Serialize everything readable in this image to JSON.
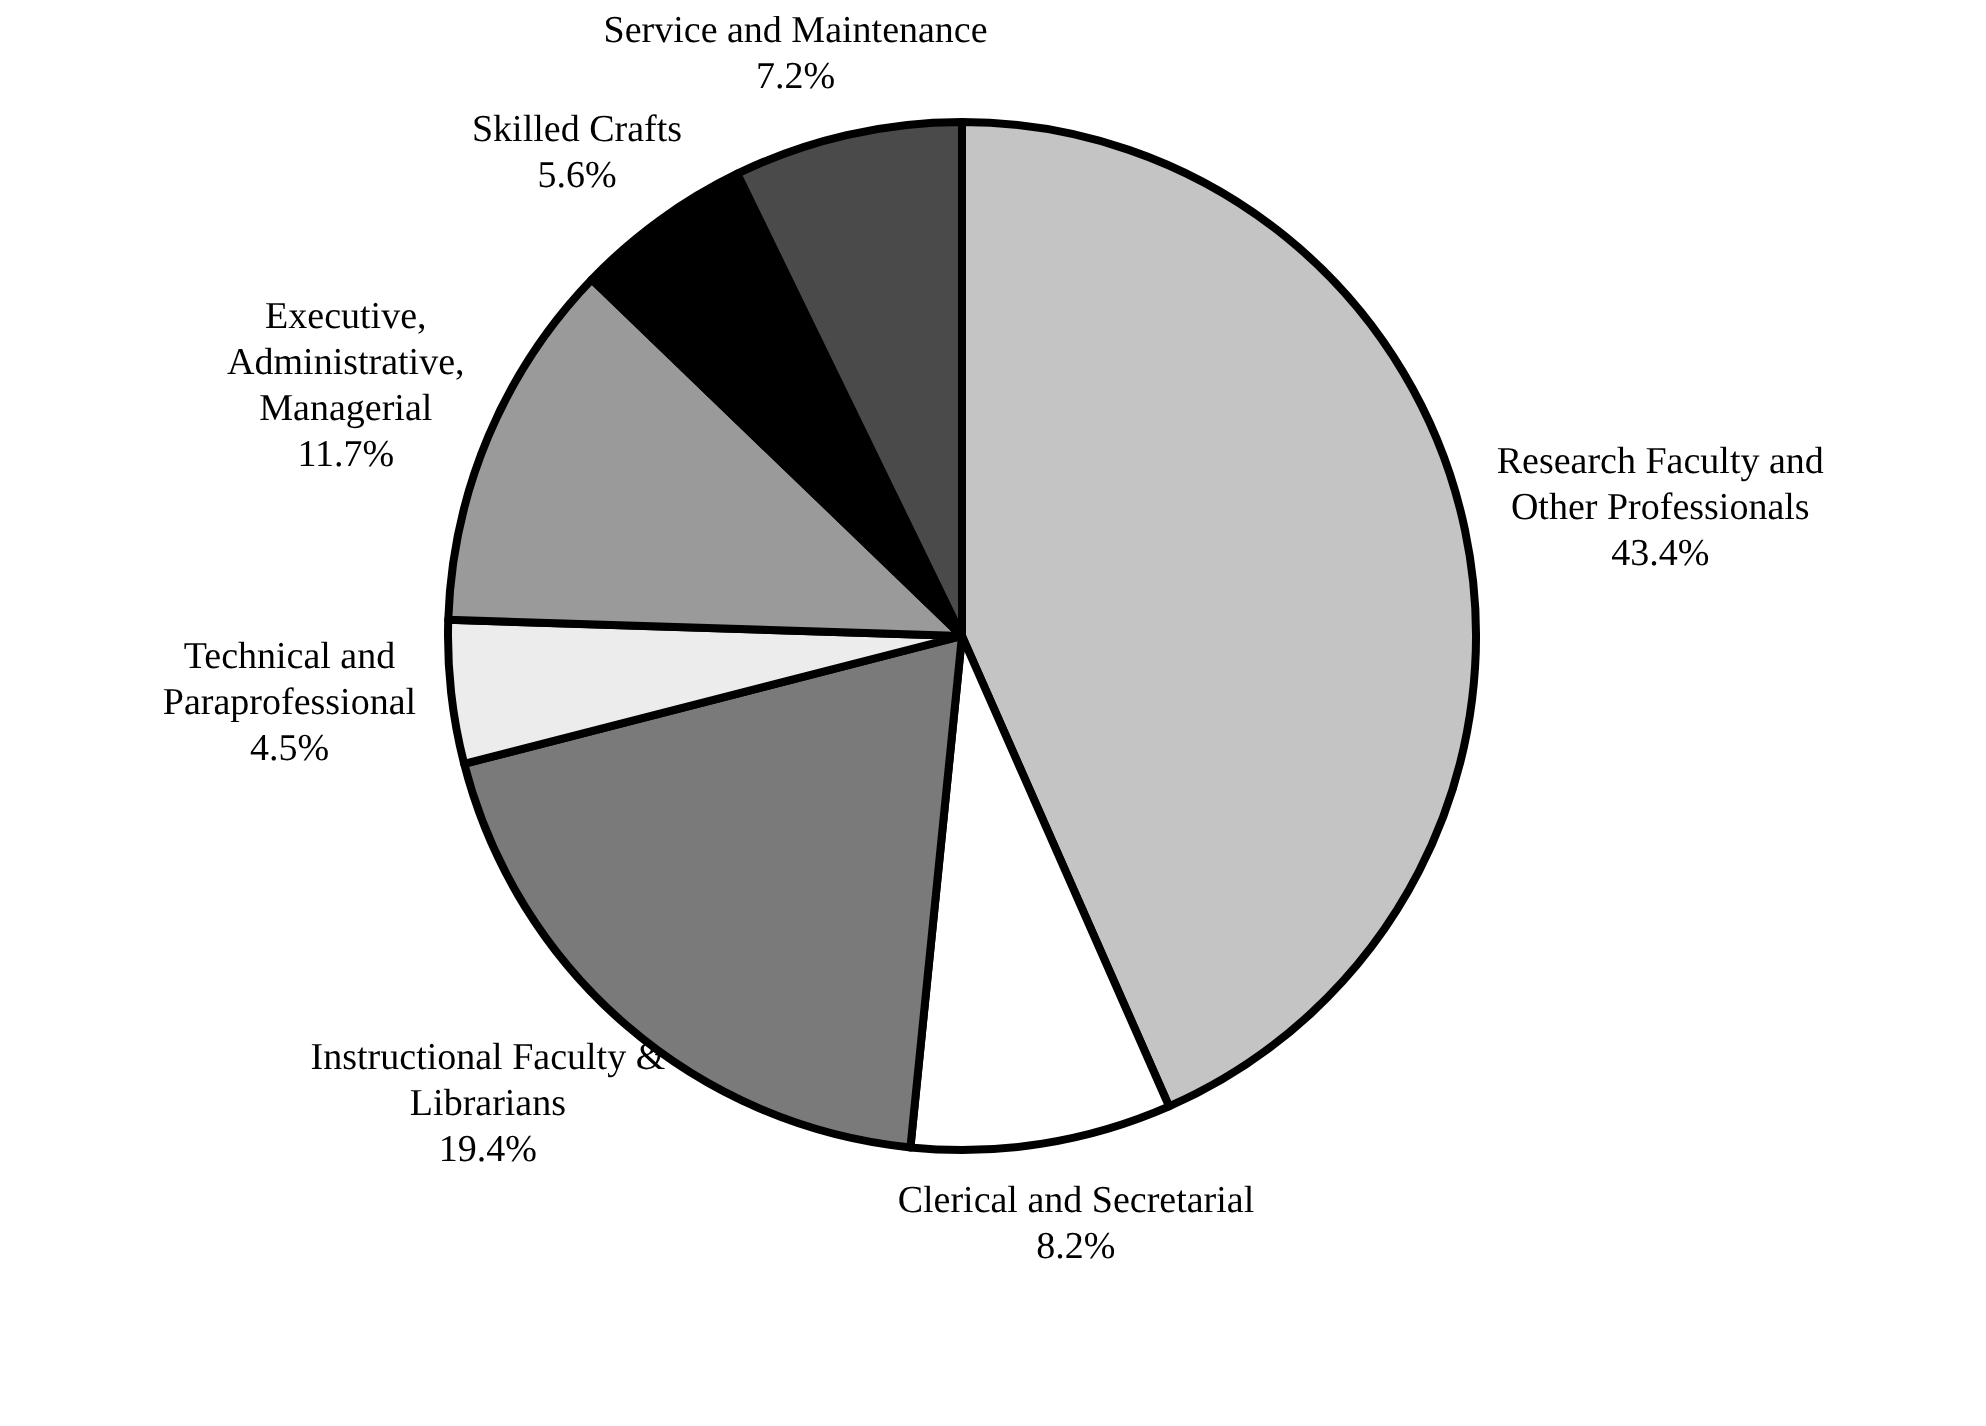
{
  "chart_data": {
    "type": "pie",
    "categories": [
      "Research Faculty and Other Professionals",
      "Clerical and Secretarial",
      "Instructional Faculty & Librarians",
      "Technical and Paraprofessional",
      "Executive, Administrative, Managerial",
      "Skilled Crafts",
      "Service and Maintenance"
    ],
    "values": [
      43.4,
      8.2,
      19.4,
      4.5,
      11.7,
      5.6,
      7.2
    ],
    "value_labels": [
      "43.4%",
      "8.2%",
      "19.4%",
      "4.5%",
      "11.7%",
      "5.6%",
      "7.2%"
    ],
    "colors": [
      "#c4c4c4",
      "#ffffff",
      "#7a7a7a",
      "#ececec",
      "#9a9a9a",
      "#000000",
      "#4a4a4a"
    ],
    "legend": false
  }
}
